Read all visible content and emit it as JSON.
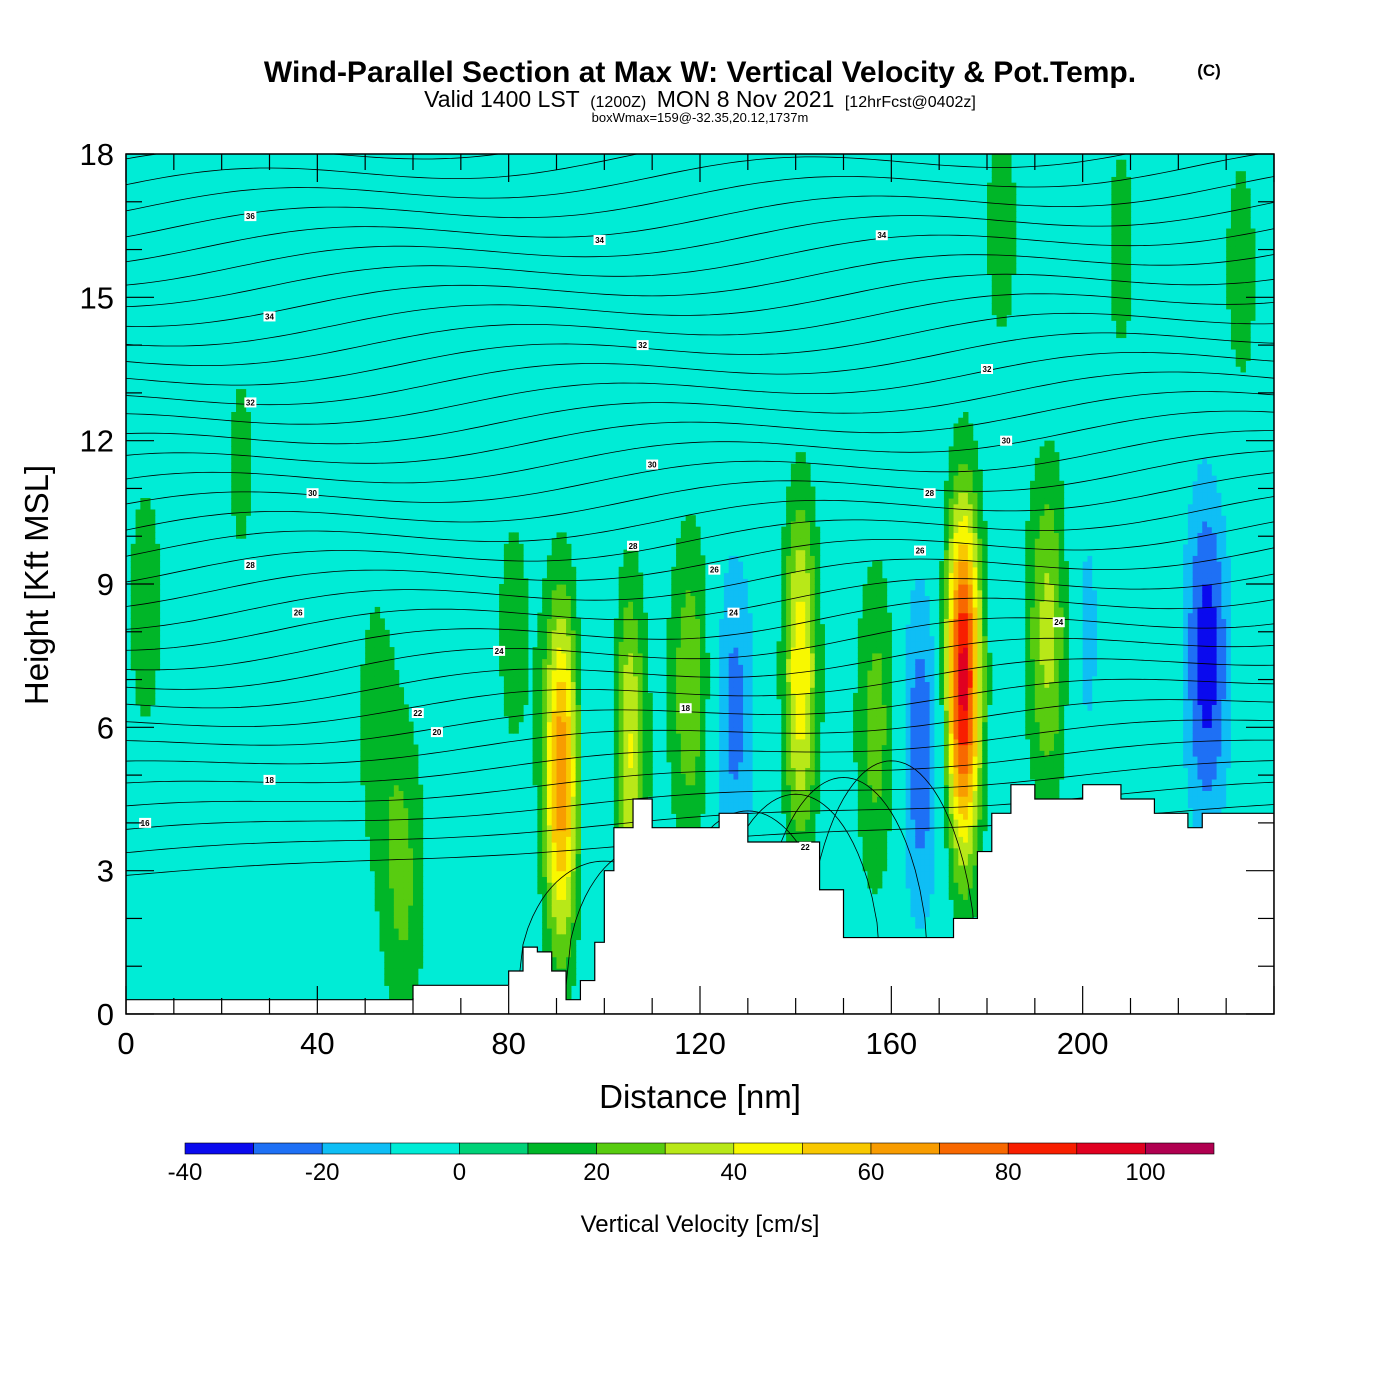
{
  "header": {
    "title": "Wind-Parallel Section at Max W: Vertical Velocity & Pot.Temp.",
    "copyright": "(C)",
    "valid_prefix": "Valid 1400 LST",
    "valid_utc": "(1200Z)",
    "valid_date": "MON 8 Nov 2021",
    "forecast": "[12hrFcst@0402z]",
    "box_info": "boxWmax=159@-32.35,20.12,1737m"
  },
  "chart_data": {
    "type": "heatmap",
    "xlabel": "Distance [nm]",
    "ylabel": "Height [Kft MSL]",
    "xlim": [
      0,
      240
    ],
    "ylim": [
      0,
      18
    ],
    "x_ticks": [
      "0",
      "40",
      "80",
      "120",
      "160",
      "200"
    ],
    "y_ticks": [
      "0",
      "3",
      "6",
      "9",
      "12",
      "15",
      "18"
    ],
    "colorbar": {
      "label": "Vertical Velocity [cm/s]",
      "levels": [
        -40,
        -30,
        -20,
        -10,
        0,
        10,
        20,
        30,
        40,
        50,
        60,
        70,
        80,
        90,
        100,
        110
      ],
      "tick_labels": [
        "-40",
        "-20",
        "0",
        "20",
        "40",
        "60",
        "80",
        "100"
      ],
      "colors": [
        "#0a0aee",
        "#1e70f5",
        "#0fbef5",
        "#00ecd6",
        "#00d278",
        "#00b628",
        "#58cc10",
        "#b8e818",
        "#f8f800",
        "#f8c800",
        "#f89c00",
        "#f86800",
        "#f81e00",
        "#e00020",
        "#b00050"
      ]
    },
    "background_value": 0,
    "updrafts": [
      {
        "x": 4,
        "z": 8.5,
        "peak": 15
      },
      {
        "x": 24,
        "z": 11.5,
        "peak": 12
      },
      {
        "x": 52,
        "z": 6.2,
        "peak": 14
      },
      {
        "x": 58,
        "z": 2.8,
        "peak": 22
      },
      {
        "x": 81,
        "z": 8.0,
        "peak": 14
      },
      {
        "x": 91,
        "z": 5.0,
        "peak": 68
      },
      {
        "x": 105,
        "z": 5.5,
        "peak": 45
      },
      {
        "x": 118,
        "z": 6.8,
        "peak": 28
      },
      {
        "x": 141,
        "z": 7.2,
        "peak": 48
      },
      {
        "x": 157,
        "z": 6.0,
        "peak": 25
      },
      {
        "x": 175,
        "z": 7.0,
        "peak": 95
      },
      {
        "x": 193,
        "z": 8.0,
        "peak": 35
      },
      {
        "x": 183,
        "z": 16.5,
        "peak": 14
      },
      {
        "x": 208,
        "z": 16.0,
        "peak": 13
      },
      {
        "x": 233,
        "z": 15.5,
        "peak": 14
      }
    ],
    "downdrafts": [
      {
        "x": 100,
        "z": 5.5,
        "peak": -14
      },
      {
        "x": 127,
        "z": 6.3,
        "peak": -24
      },
      {
        "x": 166,
        "z": 5.5,
        "peak": -28
      },
      {
        "x": 200,
        "z": 8.0,
        "peak": -15
      },
      {
        "x": 226,
        "z": 7.5,
        "peak": -36
      }
    ],
    "terrain": {
      "x": [
        0,
        60,
        80,
        83,
        86,
        89,
        92,
        95,
        98,
        100,
        102,
        106,
        110,
        120,
        124,
        130,
        140,
        145,
        150,
        170,
        173,
        178,
        181,
        185,
        190,
        200,
        208,
        215,
        222,
        225,
        240
      ],
      "z": [
        0.3,
        0.6,
        0.9,
        1.4,
        1.3,
        0.9,
        0.3,
        0.7,
        1.5,
        3.0,
        3.9,
        4.5,
        3.9,
        3.9,
        4.2,
        3.6,
        3.6,
        2.6,
        1.6,
        1.6,
        2.0,
        3.4,
        4.2,
        4.8,
        4.5,
        4.8,
        4.5,
        4.2,
        3.9,
        4.2,
        4.2
      ]
    },
    "theta_contours": {
      "levels": [
        16,
        20,
        22,
        24,
        26,
        28,
        30,
        32,
        34
      ],
      "labels": [
        {
          "text": "16",
          "x": 4,
          "z": 4.0
        },
        {
          "text": "18",
          "x": 30,
          "z": 4.9
        },
        {
          "text": "20",
          "x": 65,
          "z": 5.9
        },
        {
          "text": "22",
          "x": 61,
          "z": 6.3
        },
        {
          "text": "24",
          "x": 78,
          "z": 7.6
        },
        {
          "text": "26",
          "x": 36,
          "z": 8.4
        },
        {
          "text": "28",
          "x": 26,
          "z": 9.4
        },
        {
          "text": "30",
          "x": 39,
          "z": 10.9
        },
        {
          "text": "32",
          "x": 26,
          "z": 12.8
        },
        {
          "text": "34",
          "x": 30,
          "z": 14.6
        },
        {
          "text": "36",
          "x": 26,
          "z": 16.7
        },
        {
          "text": "34",
          "x": 99,
          "z": 16.2
        },
        {
          "text": "32",
          "x": 108,
          "z": 14.0
        },
        {
          "text": "30",
          "x": 110,
          "z": 11.5
        },
        {
          "text": "28",
          "x": 106,
          "z": 9.8
        },
        {
          "text": "26",
          "x": 123,
          "z": 9.3
        },
        {
          "text": "24",
          "x": 127,
          "z": 8.4
        },
        {
          "text": "18",
          "x": 117,
          "z": 6.4
        },
        {
          "text": "22",
          "x": 142,
          "z": 3.5
        },
        {
          "text": "34",
          "x": 158,
          "z": 16.3
        },
        {
          "text": "32",
          "x": 180,
          "z": 13.5
        },
        {
          "text": "30",
          "x": 184,
          "z": 12.0
        },
        {
          "text": "28",
          "x": 168,
          "z": 10.9
        },
        {
          "text": "26",
          "x": 166,
          "z": 9.7
        },
        {
          "text": "24",
          "x": 195,
          "z": 8.2
        }
      ]
    }
  }
}
